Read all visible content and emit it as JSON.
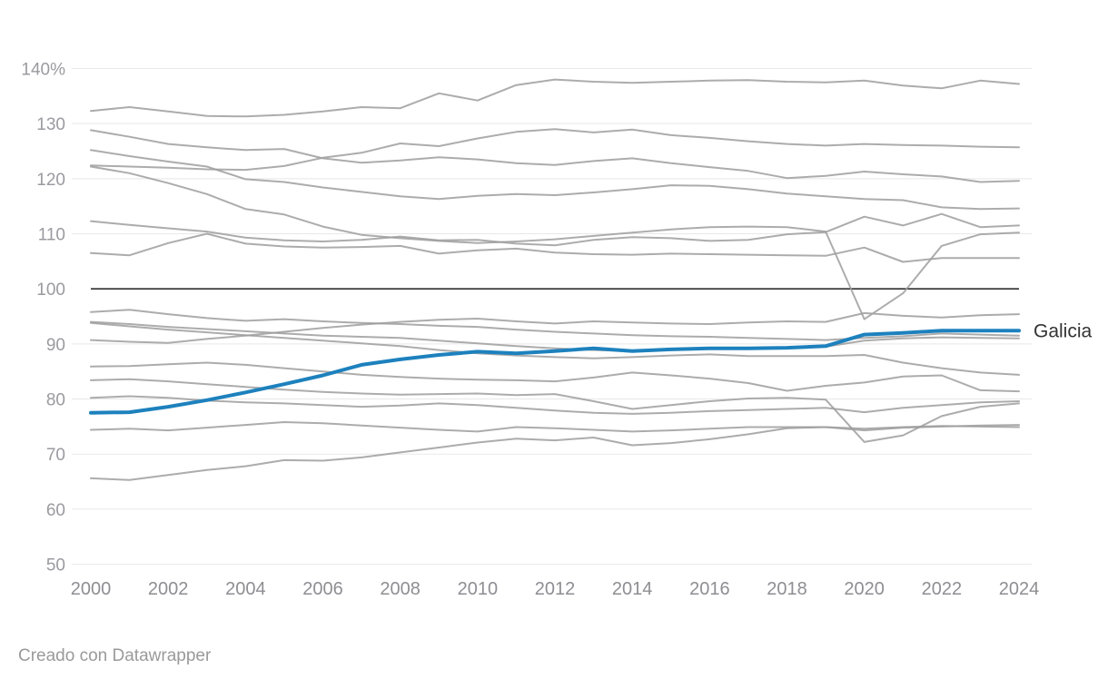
{
  "footer": {
    "credit": "Creado con Datawrapper"
  },
  "chart_data": {
    "type": "line",
    "title": "",
    "xlabel": "",
    "ylabel": "",
    "x_ticks": [
      2000,
      2002,
      2004,
      2006,
      2008,
      2010,
      2012,
      2014,
      2016,
      2018,
      2020,
      2022,
      2024
    ],
    "y_ticks": [
      50,
      60,
      70,
      80,
      90,
      100,
      110,
      120,
      130,
      140
    ],
    "y_tick_labels": [
      "50",
      "60",
      "70",
      "80",
      "90",
      "100",
      "110",
      "120",
      "130",
      "140%"
    ],
    "ylim": [
      50,
      143
    ],
    "xlim": [
      2000,
      2024
    ],
    "grid": "horizontal",
    "baseline_value": 100,
    "legend_position": "end-of-line-label",
    "annotation_label": "Galicia",
    "colors": {
      "grid": "#e8e8e8",
      "baseline": "#2f2f2f",
      "gray_line": "#9d9d9d",
      "highlight": "#1d81bd",
      "label_text": "#333333",
      "tick_text": "#9a9aa0"
    },
    "x": [
      2000,
      2001,
      2002,
      2003,
      2004,
      2005,
      2006,
      2007,
      2008,
      2009,
      2010,
      2011,
      2012,
      2013,
      2014,
      2015,
      2016,
      2017,
      2018,
      2019,
      2020,
      2021,
      2022,
      2023,
      2024
    ],
    "series": [
      {
        "name": "line-01",
        "highlight": false,
        "values": [
          132.3,
          133.0,
          132.2,
          131.4,
          131.3,
          131.6,
          132.2,
          133.0,
          132.8,
          135.5,
          134.2,
          137.0,
          138.0,
          137.6,
          137.4,
          137.6,
          137.8,
          137.9,
          137.6,
          137.5,
          137.8,
          136.9,
          136.4,
          137.8,
          137.2
        ]
      },
      {
        "name": "line-02",
        "highlight": false,
        "values": [
          128.8,
          127.6,
          126.3,
          125.7,
          125.2,
          125.4,
          123.7,
          122.9,
          123.3,
          123.9,
          123.5,
          122.8,
          122.5,
          123.2,
          123.7,
          122.8,
          122.1,
          121.4,
          120.1,
          120.5,
          121.3,
          120.8,
          120.4,
          119.4,
          119.6
        ]
      },
      {
        "name": "line-03",
        "highlight": false,
        "values": [
          122.4,
          122.2,
          122.0,
          121.7,
          121.6,
          122.3,
          123.8,
          124.7,
          126.4,
          125.9,
          127.3,
          128.5,
          129.0,
          128.4,
          128.9,
          127.9,
          127.4,
          126.8,
          126.3,
          126.0,
          126.3,
          126.1,
          126.0,
          125.8,
          125.7
        ]
      },
      {
        "name": "line-04",
        "highlight": false,
        "values": [
          125.2,
          124.1,
          123.1,
          122.2,
          119.9,
          119.4,
          118.4,
          117.6,
          116.8,
          116.3,
          116.9,
          117.2,
          117.0,
          117.5,
          118.1,
          118.8,
          118.7,
          118.1,
          117.3,
          116.8,
          116.3,
          116.1,
          114.8,
          114.5,
          114.6
        ]
      },
      {
        "name": "line-05",
        "highlight": false,
        "values": [
          122.2,
          121.0,
          119.2,
          117.2,
          114.5,
          113.5,
          111.3,
          109.8,
          109.2,
          108.7,
          108.3,
          108.6,
          109.0,
          109.6,
          110.2,
          110.8,
          111.2,
          111.3,
          111.2,
          110.4,
          94.5,
          99.2,
          107.8,
          109.9,
          110.2
        ]
      },
      {
        "name": "line-06",
        "highlight": false,
        "values": [
          112.3,
          111.6,
          111.0,
          110.4,
          109.3,
          108.8,
          108.6,
          108.9,
          109.5,
          108.8,
          108.9,
          108.2,
          107.9,
          108.9,
          109.4,
          109.2,
          108.7,
          108.9,
          109.9,
          110.3,
          113.1,
          111.5,
          113.6,
          111.2,
          111.5
        ]
      },
      {
        "name": "line-07",
        "highlight": false,
        "values": [
          106.5,
          106.1,
          108.3,
          110.0,
          108.2,
          107.7,
          107.5,
          107.6,
          107.8,
          106.4,
          107.0,
          107.3,
          106.6,
          106.3,
          106.2,
          106.4,
          106.3,
          106.2,
          106.1,
          106.0,
          107.5,
          104.9,
          105.6,
          105.6,
          105.6
        ]
      },
      {
        "name": "line-08",
        "highlight": false,
        "values": [
          95.8,
          96.2,
          95.4,
          94.7,
          94.2,
          94.5,
          94.1,
          93.8,
          93.6,
          93.3,
          93.1,
          92.6,
          92.2,
          91.9,
          91.6,
          91.4,
          91.3,
          91.1,
          90.9,
          90.7,
          91.1,
          91.4,
          91.9,
          91.7,
          91.5
        ]
      },
      {
        "name": "line-09",
        "highlight": false,
        "values": [
          94.0,
          93.6,
          93.1,
          92.7,
          92.3,
          91.9,
          91.5,
          91.3,
          91.1,
          90.6,
          90.1,
          89.6,
          89.2,
          88.9,
          88.7,
          89.0,
          89.2,
          89.1,
          89.3,
          89.5,
          90.6,
          91.0,
          91.2,
          91.1,
          91.0
        ]
      },
      {
        "name": "line-10",
        "highlight": false,
        "values": [
          93.8,
          93.2,
          92.6,
          92.1,
          91.6,
          91.1,
          90.6,
          90.1,
          89.6,
          88.9,
          88.3,
          87.9,
          87.6,
          87.4,
          87.6,
          87.9,
          88.1,
          87.8,
          87.8,
          87.8,
          88.0,
          86.6,
          85.6,
          84.8,
          84.4
        ]
      },
      {
        "name": "line-11",
        "highlight": false,
        "values": [
          90.7,
          90.4,
          90.2,
          90.9,
          91.5,
          92.2,
          92.9,
          93.5,
          94.0,
          94.4,
          94.6,
          94.1,
          93.7,
          94.1,
          93.9,
          93.7,
          93.6,
          93.9,
          94.1,
          94.0,
          95.6,
          95.1,
          94.8,
          95.2,
          95.4
        ]
      },
      {
        "name": "line-12",
        "highlight": false,
        "values": [
          85.9,
          86.0,
          86.3,
          86.6,
          86.2,
          85.6,
          85.0,
          84.4,
          84.0,
          83.7,
          83.5,
          83.4,
          83.2,
          83.9,
          84.8,
          84.3,
          83.7,
          82.9,
          81.5,
          82.4,
          83.0,
          84.1,
          84.3,
          81.6,
          81.4
        ]
      },
      {
        "name": "line-13",
        "highlight": false,
        "values": [
          83.4,
          83.6,
          83.2,
          82.7,
          82.2,
          81.7,
          81.3,
          81.0,
          80.8,
          80.9,
          81.0,
          80.7,
          80.9,
          79.6,
          78.2,
          78.9,
          79.6,
          80.1,
          80.2,
          79.9,
          72.2,
          73.4,
          76.9,
          78.6,
          79.2
        ]
      },
      {
        "name": "line-14",
        "highlight": false,
        "values": [
          80.2,
          80.5,
          80.2,
          79.7,
          79.4,
          79.2,
          78.9,
          78.6,
          78.8,
          79.2,
          78.9,
          78.4,
          77.9,
          77.5,
          77.3,
          77.5,
          77.8,
          78.0,
          78.2,
          78.4,
          77.6,
          78.4,
          78.9,
          79.4,
          79.6
        ]
      },
      {
        "name": "line-15",
        "highlight": false,
        "values": [
          74.4,
          74.6,
          74.3,
          74.8,
          75.3,
          75.8,
          75.6,
          75.2,
          74.8,
          74.4,
          74.1,
          74.9,
          74.7,
          74.4,
          74.1,
          74.3,
          74.6,
          74.9,
          74.9,
          74.9,
          74.3,
          74.8,
          75.0,
          75.2,
          75.3
        ]
      },
      {
        "name": "line-16",
        "highlight": false,
        "values": [
          65.6,
          65.3,
          66.2,
          67.1,
          67.8,
          68.9,
          68.8,
          69.4,
          70.3,
          71.2,
          72.1,
          72.8,
          72.5,
          73.0,
          71.6,
          72.0,
          72.7,
          73.6,
          74.7,
          74.9,
          74.6,
          74.9,
          75.1,
          75.0,
          74.9
        ]
      },
      {
        "name": "Galicia",
        "highlight": true,
        "values": [
          77.5,
          77.6,
          78.6,
          79.8,
          81.2,
          82.7,
          84.3,
          86.2,
          87.2,
          88.0,
          88.6,
          88.3,
          88.7,
          89.2,
          88.7,
          89.0,
          89.2,
          89.2,
          89.3,
          89.6,
          91.7,
          92.0,
          92.4,
          92.4,
          92.4
        ]
      }
    ]
  }
}
